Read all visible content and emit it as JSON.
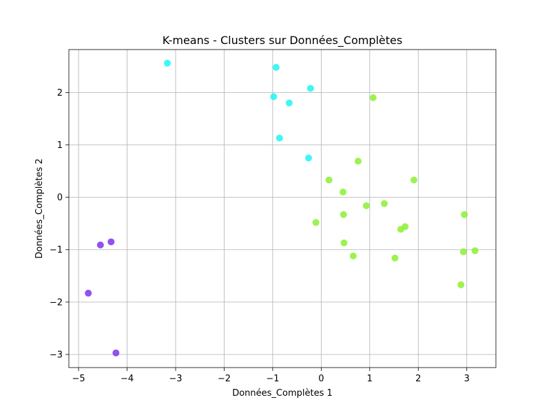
{
  "chart_data": {
    "type": "scatter",
    "title": "K-means - Clusters sur Données_Complètes",
    "xlabel": "Données_Complètes 1",
    "ylabel": "Données_Complètes 2",
    "xlim": [
      -5.2,
      3.6
    ],
    "ylim": [
      -3.25,
      2.82
    ],
    "xticks": [
      -5,
      -4,
      -3,
      -2,
      -1,
      0,
      1,
      2,
      3
    ],
    "yticks": [
      -3,
      -2,
      -1,
      0,
      1,
      2
    ],
    "grid": true,
    "series": [
      {
        "color": "#8032f0",
        "points": [
          [
            -4.55,
            -0.91
          ],
          [
            -4.33,
            -0.85
          ],
          [
            -4.8,
            -1.83
          ],
          [
            -4.23,
            -2.97
          ]
        ]
      },
      {
        "color": "#1ef5f5",
        "points": [
          [
            -3.17,
            2.56
          ],
          [
            -0.93,
            2.48
          ],
          [
            -0.22,
            2.08
          ],
          [
            -0.98,
            1.92
          ],
          [
            -0.66,
            1.8
          ],
          [
            -0.86,
            1.13
          ],
          [
            -0.26,
            0.75
          ]
        ]
      },
      {
        "color": "#8cf032",
        "points": [
          [
            1.07,
            1.9
          ],
          [
            0.76,
            0.69
          ],
          [
            0.16,
            0.33
          ],
          [
            1.91,
            0.33
          ],
          [
            0.45,
            0.1
          ],
          [
            0.93,
            -0.16
          ],
          [
            1.3,
            -0.12
          ],
          [
            0.46,
            -0.33
          ],
          [
            -0.11,
            -0.48
          ],
          [
            2.95,
            -0.33
          ],
          [
            1.73,
            -0.56
          ],
          [
            1.64,
            -0.61
          ],
          [
            0.47,
            -0.87
          ],
          [
            3.17,
            -1.02
          ],
          [
            2.93,
            -1.04
          ],
          [
            0.66,
            -1.12
          ],
          [
            1.52,
            -1.16
          ],
          [
            2.88,
            -1.67
          ]
        ]
      }
    ]
  }
}
